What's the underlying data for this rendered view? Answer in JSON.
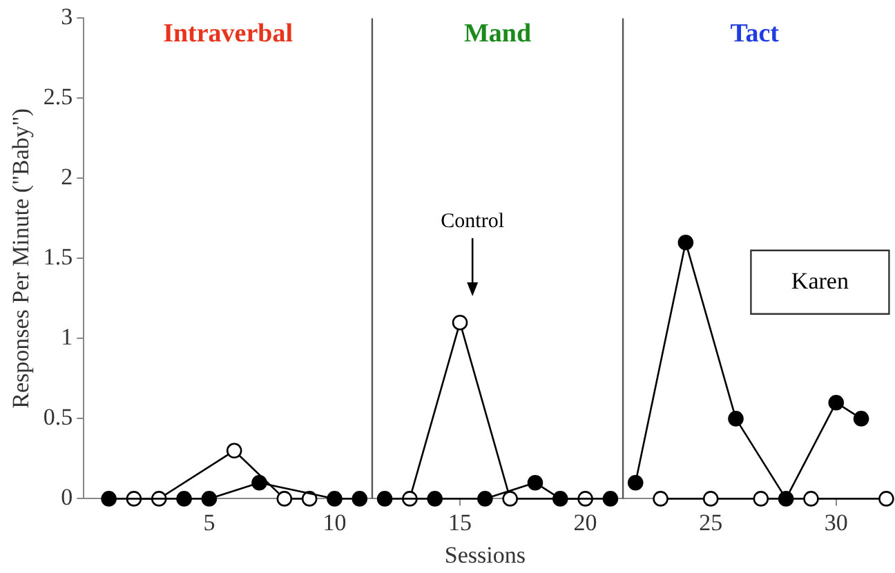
{
  "chart_data": {
    "type": "line",
    "ylabel": "Responses Per Minute (\"Baby\")",
    "xlabel": "Sessions",
    "xlim": [
      0,
      32
    ],
    "xticks": [
      5,
      10,
      15,
      20,
      25,
      30
    ],
    "ylim": [
      0,
      3
    ],
    "yticks": [
      0,
      0.5,
      1,
      1.5,
      2,
      2.5,
      3
    ],
    "marker": "circle",
    "legend": false,
    "series": [
      {
        "color": "#000000",
        "x": [
          1,
          4,
          5,
          7,
          10,
          11
        ],
        "values": [
          0,
          0,
          0,
          0.1,
          0,
          0
        ]
      },
      {
        "color": "#ffffff",
        "x": [
          2,
          3,
          6,
          8,
          9
        ],
        "values": [
          0,
          0,
          0.3,
          0,
          0
        ]
      },
      {
        "color": "#000000",
        "x": [
          12,
          14,
          16,
          18,
          19,
          21
        ],
        "values": [
          0,
          0,
          0,
          0.1,
          0,
          0
        ]
      },
      {
        "color": "#ffffff",
        "x": [
          13,
          15,
          17,
          20
        ],
        "values": [
          0,
          1.1,
          0,
          0
        ]
      },
      {
        "color": "#000000",
        "x": [
          22,
          24,
          26,
          28,
          30,
          31
        ],
        "values": [
          0.1,
          1.6,
          0.5,
          0,
          0.6,
          0.5
        ]
      },
      {
        "color": "#ffffff",
        "x": [
          23,
          25,
          27,
          29,
          32
        ],
        "values": [
          0,
          0,
          0,
          0,
          0
        ]
      }
    ],
    "ref_lines": [
      {
        "axis": "x",
        "value": 11.5,
        "color": "#555555"
      },
      {
        "axis": "x",
        "value": 21.5,
        "color": "#555555"
      }
    ],
    "annotations": [
      "Intraverbal",
      "Mand",
      "Tact",
      "Control",
      "Karen"
    ]
  }
}
